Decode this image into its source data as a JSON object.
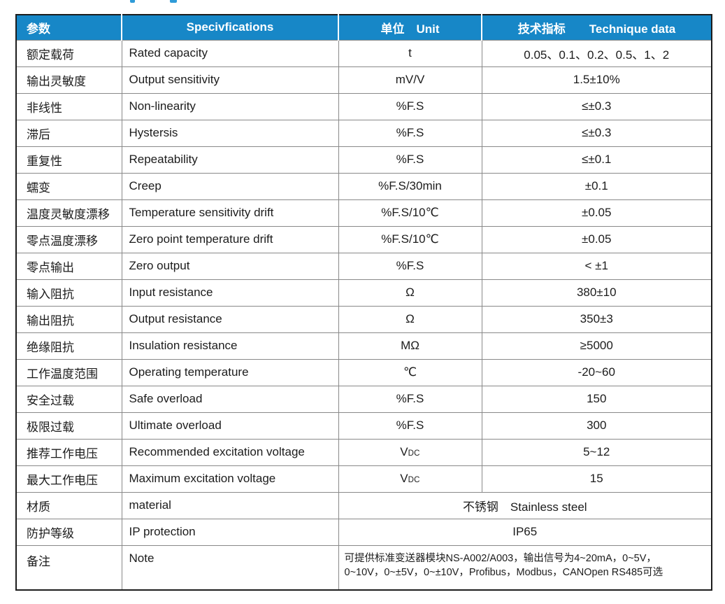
{
  "table": {
    "header": {
      "col_param": "参数",
      "col_spec": "Specivfications",
      "col_unit": "单位　Unit",
      "col_data": "技术指标　　Technique data",
      "background": "#1787c7",
      "text_color": "#ffffff"
    },
    "rows": [
      {
        "param": "额定载荷",
        "spec": "Rated capacity",
        "unit": "t",
        "value": "0.05、0.1、0.2、0.5、1、2"
      },
      {
        "param": "输出灵敏度",
        "spec": "Output sensitivity",
        "unit": "mV/V",
        "value": "1.5±10%"
      },
      {
        "param": "非线性",
        "spec": "Non-linearity",
        "unit": "%F.S",
        "value": "≤±0.3"
      },
      {
        "param": "滞后",
        "spec": "Hystersis",
        "unit": "%F.S",
        "value": "≤±0.3"
      },
      {
        "param": "重复性",
        "spec": "Repeatability",
        "unit": "%F.S",
        "value": "≤±0.1"
      },
      {
        "param": "蠕变",
        "spec": "Creep",
        "unit": "%F.S/30min",
        "value": "±0.1"
      },
      {
        "param": "温度灵敏度漂移",
        "spec": "Temperature sensitivity drift",
        "unit": "%F.S/10℃",
        "value": "±0.05"
      },
      {
        "param": "零点温度漂移",
        "spec": "Zero point temperature drift",
        "unit": "%F.S/10℃",
        "value": "±0.05"
      },
      {
        "param": "零点输出",
        "spec": "Zero output",
        "unit": "%F.S",
        "value": "< ±1"
      },
      {
        "param": "输入阻抗",
        "spec": "Input resistance",
        "unit": "Ω",
        "value": "380±10"
      },
      {
        "param": "输出阻抗",
        "spec": "Output resistance",
        "unit": "Ω",
        "value": "350±3"
      },
      {
        "param": "绝缘阻抗",
        "spec": "Insulation resistance",
        "unit": "MΩ",
        "value": "≥5000"
      },
      {
        "param": "工作温度范围",
        "spec": "Operating temperature",
        "unit": "℃",
        "value": "-20~60"
      },
      {
        "param": "安全过载",
        "spec": "Safe overload",
        "unit": "%F.S",
        "value": "150"
      },
      {
        "param": "极限过载",
        "spec": "Ultimate overload",
        "unit": "%F.S",
        "value": "300"
      },
      {
        "param": "推荐工作电压",
        "spec": "Recommended excitation voltage",
        "unit": "VDC",
        "unit_vdc": true,
        "value": "5~12"
      },
      {
        "param": "最大工作电压",
        "spec": "Maximum excitation voltage",
        "unit": "VDC",
        "unit_vdc": true,
        "value": "15"
      },
      {
        "param": "材质",
        "spec": "material",
        "merged": true,
        "value": "不锈钢　Stainless steel"
      },
      {
        "param": "防护等级",
        "spec": "IP protection",
        "merged": true,
        "value": "IP65"
      },
      {
        "param": "备注",
        "spec": "Note",
        "merged": true,
        "note": true,
        "lines": [
          "可提供标准变送器模块NS-A002/A003，输出信号为4~20mA，0~5V，",
          "0~10V，0~±5V，0~±10V，Profibus，Modbus，CANOpen RS485可选"
        ]
      }
    ]
  }
}
